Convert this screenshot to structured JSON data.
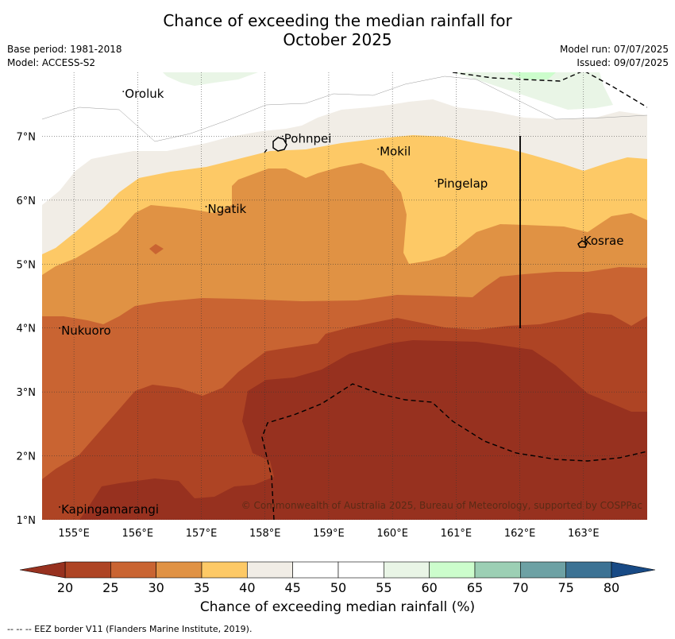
{
  "title_line1": "Chance of exceeding the median rainfall for",
  "title_line2": "October 2025",
  "meta_left": [
    "Base period: 1981-2018",
    "Model: ACCESS-S2"
  ],
  "meta_right": [
    "Model run: 07/07/2025",
    "Issued: 09/07/2025"
  ],
  "map": {
    "lon_range": [
      154.5,
      164
    ],
    "lat_range": [
      1,
      8
    ],
    "lon_ticks": [
      "155°E",
      "156°E",
      "157°E",
      "158°E",
      "159°E",
      "160°E",
      "161°E",
      "162°E",
      "163°E"
    ],
    "lat_ticks": [
      "7°N",
      "6°N",
      "5°N",
      "4°N",
      "3°N",
      "2°N",
      "1°N"
    ],
    "places": [
      {
        "name": "Oroluk",
        "lon": 155.8,
        "lat": 7.6
      },
      {
        "name": "Pohnpei",
        "lon": 158.3,
        "lat": 6.9
      },
      {
        "name": "Mokil",
        "lon": 159.8,
        "lat": 6.7
      },
      {
        "name": "Pingelap",
        "lon": 160.7,
        "lat": 6.2
      },
      {
        "name": "Ngatik",
        "lon": 157.1,
        "lat": 5.8
      },
      {
        "name": "Kosrae",
        "lon": 163.0,
        "lat": 5.3
      },
      {
        "name": "Nukuoro",
        "lon": 154.8,
        "lat": 3.9
      },
      {
        "name": "Kapingamarangi",
        "lon": 154.8,
        "lat": 1.1
      }
    ],
    "copyright": "© Commonwealth of Australia 2025, Bureau of Meteorology, supported by COSPPac"
  },
  "colorbar": {
    "ticks": [
      "20",
      "25",
      "30",
      "35",
      "40",
      "45",
      "50",
      "55",
      "60",
      "65",
      "70",
      "75",
      "80"
    ],
    "colors": [
      "#ae4424",
      "#c96432",
      "#e09244",
      "#fdc966",
      "#f1ede6",
      "#ffffff",
      "#ffffff",
      "#e9f5e6",
      "#ccfdcc",
      "#9ccfb4",
      "#6da1a4",
      "#3c7294"
    ],
    "under_color": "#97311f",
    "over_color": "#184a85",
    "label": "Chance of exceeding median rainfall (%)"
  },
  "footnote": "--  --  -- EEZ border V11 (Flanders Marine Institute, 2019)."
}
